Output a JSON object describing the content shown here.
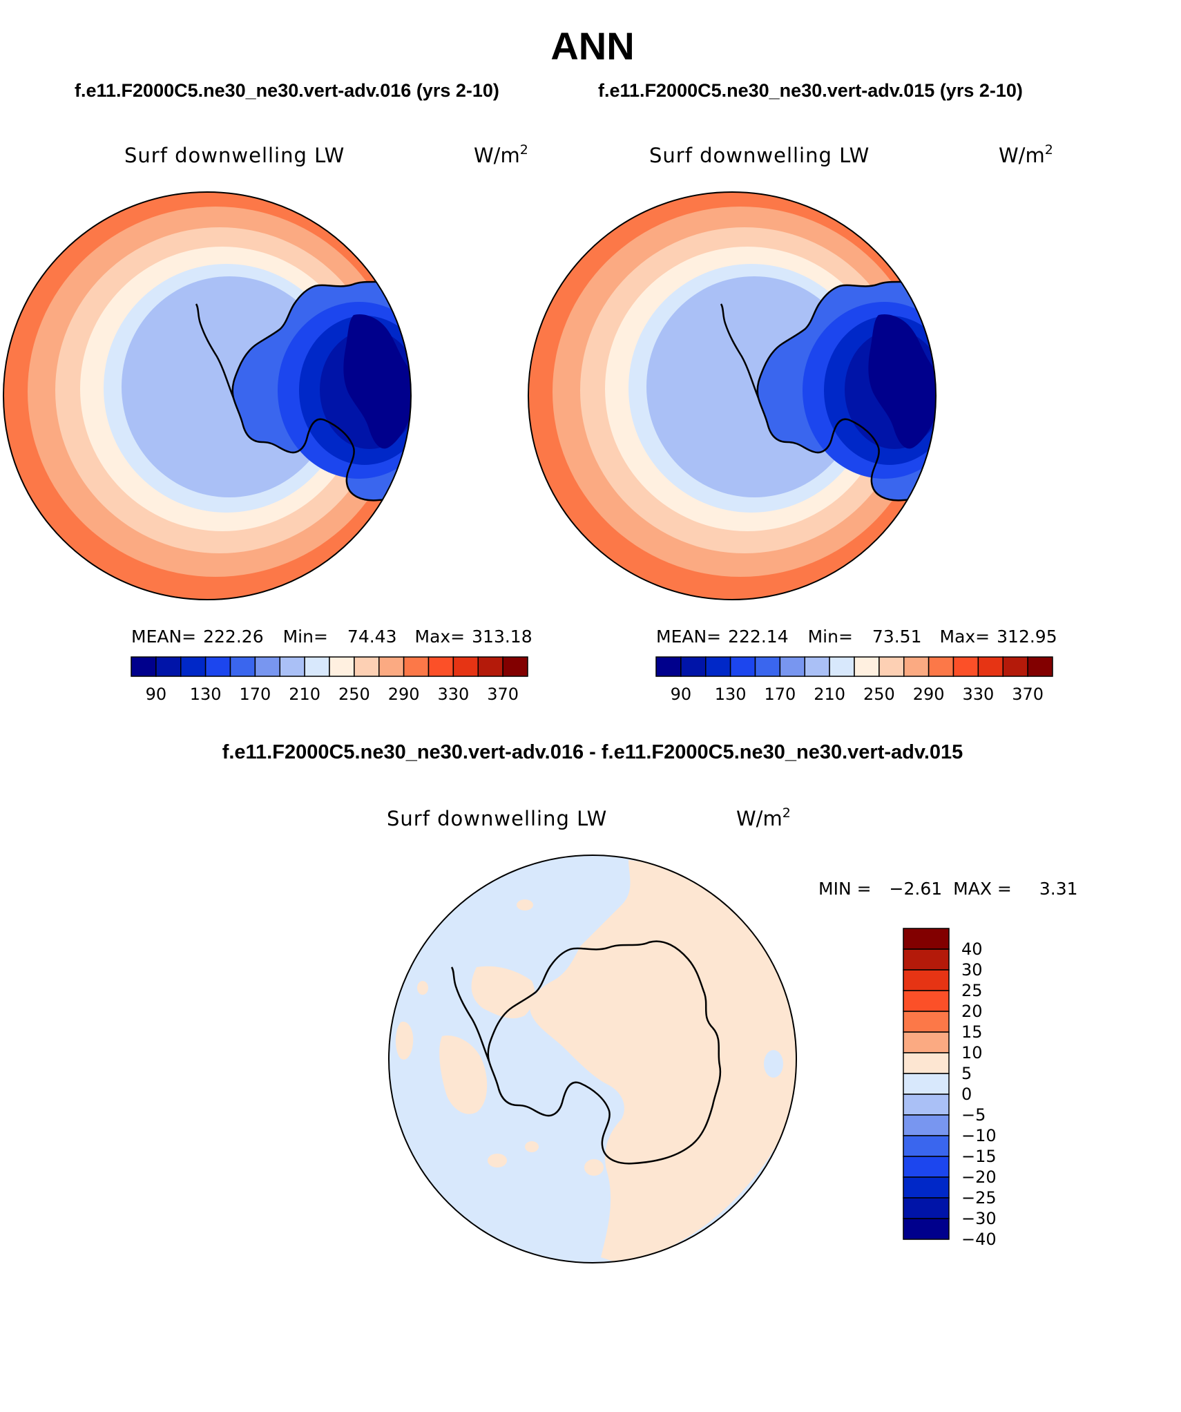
{
  "title": "ANN",
  "top_subtitles": {
    "left": "f.e11.F2000C5.ne30_ne30.vert-adv.016 (yrs 2-10)",
    "right": "f.e11.F2000C5.ne30_ne30.vert-adv.015 (yrs 2-10)"
  },
  "panels": [
    {
      "variable": "Surf downwelling LW",
      "units_base": "W/m",
      "units_exp": "2",
      "stats": {
        "mean_label": "MEAN=",
        "mean": "222.26",
        "min_label": "Min=",
        "min": "74.43",
        "max_label": "Max=",
        "max": "313.18"
      }
    },
    {
      "variable": "Surf downwelling LW",
      "units_base": "W/m",
      "units_exp": "2",
      "stats": {
        "mean_label": "MEAN=",
        "mean": "222.14",
        "min_label": "Min=",
        "min": "73.51",
        "max_label": "Max=",
        "max": "312.95"
      }
    }
  ],
  "abs_colorbar": {
    "colors": [
      "#00008c",
      "#0014a8",
      "#0028c8",
      "#1c46ee",
      "#3a66ee",
      "#7896f0",
      "#aac0f6",
      "#d8e8fc",
      "#fff0e0",
      "#fdd0b4",
      "#fbaa82",
      "#fc7848",
      "#fc5028",
      "#e63414",
      "#b41a0a",
      "#820000"
    ],
    "tick_labels": [
      "90",
      "130",
      "170",
      "210",
      "250",
      "290",
      "330",
      "370"
    ]
  },
  "diff_panel": {
    "title": "f.e11.F2000C5.ne30_ne30.vert-adv.016 - f.e11.F2000C5.ne30_ne30.vert-adv.015",
    "variable": "Surf downwelling LW",
    "units_base": "W/m",
    "units_exp": "2",
    "minmax": {
      "min_label": "MIN =",
      "min": "−2.61",
      "max_label": "MAX =",
      "max": "3.31"
    }
  },
  "diff_colorbar": {
    "colors_top_to_bottom": [
      "#820000",
      "#b41a0a",
      "#e63414",
      "#fc5028",
      "#fc7848",
      "#fbaa82",
      "#fde6d2",
      "#d8e8fc",
      "#aac0f6",
      "#7896f0",
      "#3a66ee",
      "#1c46ee",
      "#0028c8",
      "#0014a8",
      "#00008c"
    ],
    "tick_labels_top_to_bottom": [
      "40",
      "30",
      "25",
      "20",
      "15",
      "10",
      "5",
      "0",
      "−5",
      "−10",
      "−15",
      "−20",
      "−25",
      "−30",
      "−40"
    ]
  }
}
